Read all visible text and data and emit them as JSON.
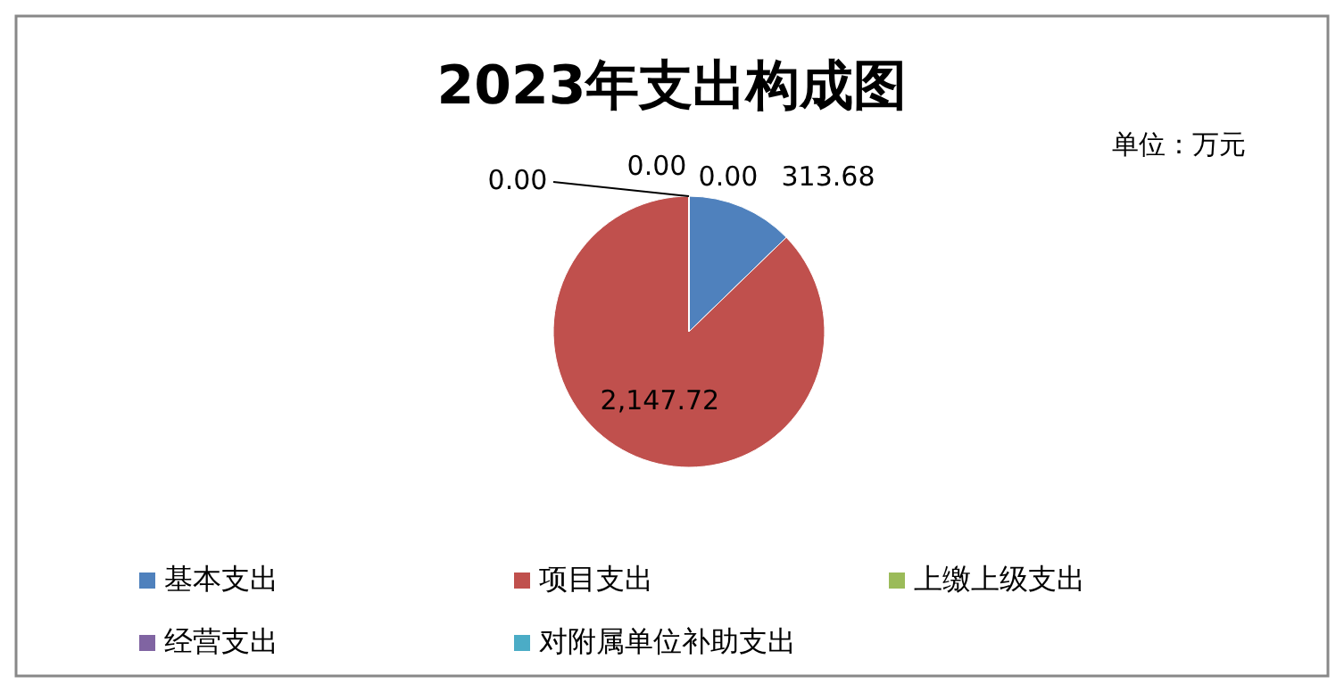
{
  "chart_data": {
    "type": "pie",
    "title": "2023年支出构成图",
    "annotations": [
      "单位：万元"
    ],
    "categories": [
      "基本支出",
      "项目支出",
      "上缴上级支出",
      "经营支出",
      "对附属单位补助支出"
    ],
    "values": [
      313.68,
      2147.72,
      0,
      0,
      0
    ],
    "colors": [
      "#4f81bd",
      "#c0504d",
      "#9bbb59",
      "#8064a2",
      "#4bacc6"
    ],
    "value_labels": [
      "313.68",
      "2,147.72",
      "0.00",
      "0.00",
      "0.00"
    ],
    "legend": "bottom"
  }
}
